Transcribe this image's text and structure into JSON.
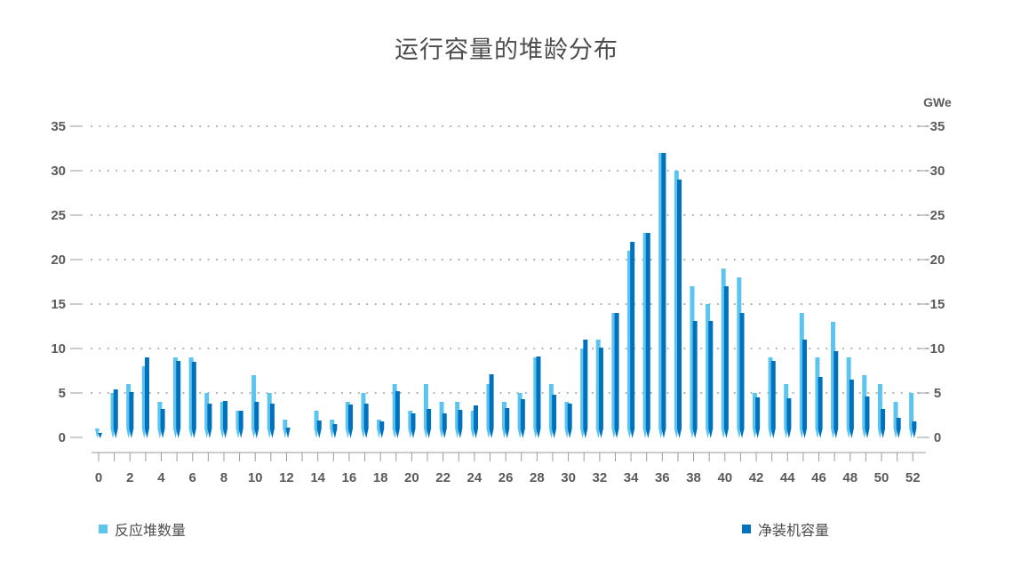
{
  "colors": {
    "reactors": "#5bc5f0",
    "capacity": "#0071bc",
    "grid": "#b0b0b0",
    "axis": "#9a9a9a"
  },
  "chart_data": {
    "type": "bar",
    "title": "运行容量的堆龄分布",
    "unit_label": "GWe",
    "x": [
      0,
      1,
      2,
      3,
      4,
      5,
      6,
      7,
      8,
      9,
      10,
      11,
      12,
      13,
      14,
      15,
      16,
      17,
      18,
      19,
      20,
      21,
      22,
      23,
      24,
      25,
      26,
      27,
      28,
      29,
      30,
      31,
      32,
      33,
      34,
      35,
      36,
      37,
      38,
      39,
      40,
      41,
      42,
      43,
      44,
      45,
      46,
      47,
      48,
      49,
      50,
      51,
      52
    ],
    "x_tick_labels": [
      "0",
      "2",
      "4",
      "6",
      "8",
      "10",
      "12",
      "14",
      "16",
      "18",
      "20",
      "22",
      "24",
      "26",
      "28",
      "30",
      "32",
      "34",
      "36",
      "38",
      "40",
      "42",
      "44",
      "46",
      "48",
      "50",
      "52"
    ],
    "ylim": [
      0,
      35
    ],
    "y_ticks": [
      0,
      5,
      10,
      15,
      20,
      25,
      30,
      35
    ],
    "grid": true,
    "legend_placement": "bottom",
    "series": [
      {
        "name": "反应堆数量",
        "color_key": "reactors",
        "values": [
          1,
          5,
          6,
          8,
          4,
          9,
          9,
          5,
          4,
          3,
          7,
          5,
          2,
          0,
          3,
          2,
          4,
          5,
          2,
          6,
          3,
          6,
          4,
          4,
          3,
          6,
          4,
          5,
          9,
          6,
          4,
          10,
          11,
          14,
          21,
          23,
          32,
          30,
          17,
          15,
          19,
          18,
          5,
          9,
          6,
          14,
          9,
          13,
          9,
          7,
          6,
          4,
          5
        ]
      },
      {
        "name": "净装机容量",
        "color_key": "capacity",
        "values": [
          0.5,
          5.4,
          5.1,
          9,
          3.2,
          8.6,
          8.5,
          3.8,
          4.1,
          3,
          4,
          3.8,
          1.1,
          0,
          1.9,
          1.5,
          3.7,
          3.8,
          1.8,
          5.2,
          2.7,
          3.2,
          2.7,
          3.1,
          3.6,
          7.1,
          3.3,
          4.3,
          9.1,
          4.8,
          3.8,
          11,
          10.1,
          14,
          22,
          23,
          32,
          29,
          13.1,
          13.1,
          17,
          14,
          4.5,
          8.6,
          4.4,
          11,
          6.8,
          9.7,
          6.5,
          4.6,
          3.2,
          2.2,
          1.8
        ]
      }
    ]
  }
}
